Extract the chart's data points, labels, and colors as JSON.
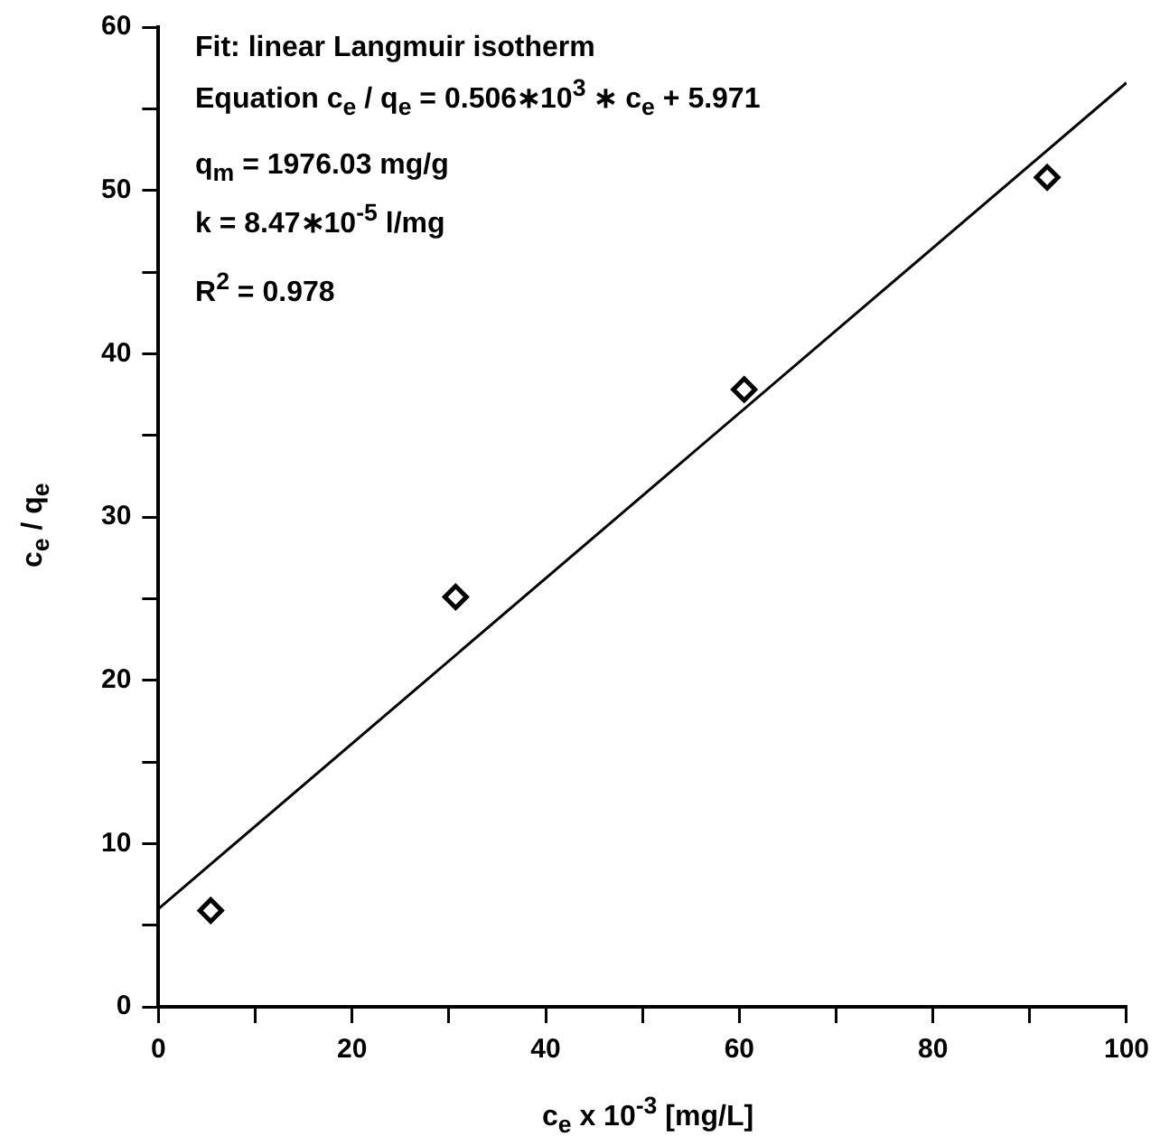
{
  "chart_data": {
    "type": "scatter",
    "xlabel": "c$_{e}$ x 10$^{-3}$  [mg/L]",
    "ylabel": "c$_{e}$ / q$_{e}$",
    "xlim": [
      0,
      100
    ],
    "ylim": [
      0,
      60
    ],
    "xticks": [
      0,
      {
        "value": 10,
        "label": null
      },
      20,
      {
        "value": 30,
        "label": null
      },
      40,
      {
        "value": 50,
        "label": null
      },
      60,
      {
        "value": 70,
        "label": null
      },
      80,
      {
        "value": 90,
        "label": null
      },
      100
    ],
    "yticks": [
      0,
      {
        "value": 5,
        "label": null
      },
      10,
      {
        "value": 15,
        "label": null
      },
      20,
      {
        "value": 25,
        "label": null
      },
      30,
      {
        "value": 35,
        "label": null
      },
      40,
      {
        "value": 45,
        "label": null
      },
      50,
      {
        "value": 55,
        "label": null
      },
      60
    ],
    "grid": false,
    "legend": false,
    "series": [
      {
        "color": "#000000",
        "marker": "diamond",
        "x": [
          5.4,
          30.7,
          60.5,
          91.8
        ],
        "values": [
          5.9,
          25.1,
          37.8,
          50.8
        ]
      },
      {
        "type": "line",
        "color": "#000000",
        "marker": "none",
        "line_style": "solid",
        "x": [
          0,
          100
        ],
        "values": [
          6.0,
          56.6
        ]
      }
    ],
    "annotations": [
      "Fit:  linear Langmuir isotherm",
      "Equation c$_{e}$ / q$_{e}$ = 0.506∗10$^{3}$ ∗ c$_{e}$ + 5.971",
      "q$_{m}$ = 1976.03 mg/g",
      "k = 8.47∗10$^{-5}$ l/mg",
      "R$^{2}$  = 0.978"
    ]
  }
}
